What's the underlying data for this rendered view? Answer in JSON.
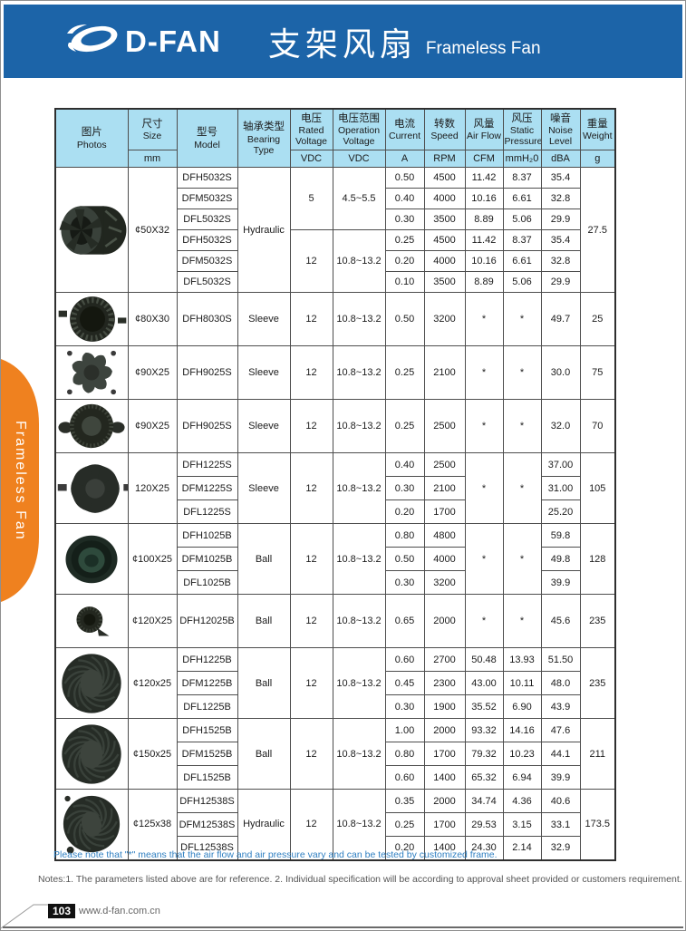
{
  "header": {
    "brand": "D-FAN",
    "title_zh": "支架风扇",
    "title_en": "Frameless Fan"
  },
  "side_tab": {
    "label": "Frameless Fan",
    "color": "#ef811f"
  },
  "colors": {
    "banner_blue": "#1c64a8",
    "table_header_blue": "#abdff2",
    "note_blue": "#2f7fc1"
  },
  "table": {
    "columns": [
      {
        "key": "photos",
        "zh": "图片",
        "en": "Photos",
        "unit": null
      },
      {
        "key": "size",
        "zh": "尺寸",
        "en": "Size",
        "unit": "mm"
      },
      {
        "key": "model",
        "zh": "型号",
        "en": "Model",
        "unit": null
      },
      {
        "key": "bearing",
        "zh": "轴承类型",
        "en": "Bearing Type",
        "unit": null
      },
      {
        "key": "rated_voltage",
        "zh": "电压",
        "en": "Rated Voltage",
        "unit": "VDC"
      },
      {
        "key": "operation_voltage",
        "zh": "电压范围",
        "en": "Operation Voltage",
        "unit": "VDC"
      },
      {
        "key": "current",
        "zh": "电流",
        "en": "Current",
        "unit": "A"
      },
      {
        "key": "speed",
        "zh": "转数",
        "en": "Speed",
        "unit": "RPM"
      },
      {
        "key": "air_flow",
        "zh": "风量",
        "en": "Air Flow",
        "unit": "CFM"
      },
      {
        "key": "static_pressure",
        "zh": "风压",
        "en": "Static Pressure",
        "unit": "mmH₂0"
      },
      {
        "key": "noise",
        "zh": "噪音",
        "en": "Noise Level",
        "unit": "dBA"
      },
      {
        "key": "weight",
        "zh": "重量",
        "en": "Weight",
        "unit": "g"
      }
    ],
    "groups": [
      {
        "photo": "centrifugal",
        "size": "¢50X32",
        "bearing": "Hydraulic",
        "weight": "27.5",
        "subgroups": [
          {
            "voltage": "5",
            "range": "4.5~5.5",
            "rows": [
              {
                "model": "DFH5032S",
                "current": "0.50",
                "speed": "4500",
                "airflow": "11.42",
                "pressure": "8.37",
                "noise": "35.4"
              },
              {
                "model": "DFM5032S",
                "current": "0.40",
                "speed": "4000",
                "airflow": "10.16",
                "pressure": "6.61",
                "noise": "32.8"
              },
              {
                "model": "DFL5032S",
                "current": "0.30",
                "speed": "3500",
                "airflow": "8.89",
                "pressure": "5.06",
                "noise": "29.9"
              }
            ]
          },
          {
            "voltage": "12",
            "range": "10.8~13.2",
            "rows": [
              {
                "model": "DFH5032S",
                "current": "0.25",
                "speed": "4500",
                "airflow": "11.42",
                "pressure": "8.37",
                "noise": "35.4"
              },
              {
                "model": "DFM5032S",
                "current": "0.20",
                "speed": "4000",
                "airflow": "10.16",
                "pressure": "6.61",
                "noise": "32.8"
              },
              {
                "model": "DFL5032S",
                "current": "0.10",
                "speed": "3500",
                "airflow": "8.89",
                "pressure": "5.06",
                "noise": "29.9"
              }
            ]
          }
        ]
      },
      {
        "photo": "blower",
        "size": "¢80X30",
        "bearing": "Sleeve",
        "weight": "25",
        "subgroups": [
          {
            "voltage": "12",
            "range": "10.8~13.2",
            "rows": [
              {
                "model": "DFH8030S",
                "current": "0.50",
                "speed": "3200",
                "airflow": "*",
                "pressure": "*",
                "noise": "49.7"
              }
            ]
          }
        ]
      },
      {
        "photo": "axial",
        "size": "¢90X25",
        "bearing": "Sleeve",
        "weight": "75",
        "subgroups": [
          {
            "voltage": "12",
            "range": "10.8~13.2",
            "rows": [
              {
                "model": "DFH9025S",
                "current": "0.25",
                "speed": "2100",
                "airflow": "*",
                "pressure": "*",
                "noise": "30.0"
              }
            ]
          }
        ]
      },
      {
        "photo": "dome",
        "size": "¢90X25",
        "bearing": "Sleeve",
        "weight": "70",
        "subgroups": [
          {
            "voltage": "12",
            "range": "10.8~13.2",
            "rows": [
              {
                "model": "DFH9025S",
                "current": "0.25",
                "speed": "2500",
                "airflow": "*",
                "pressure": "*",
                "noise": "32.0"
              }
            ]
          }
        ]
      },
      {
        "photo": "axial8",
        "size": "120X25",
        "bearing": "Sleeve",
        "weight": "105",
        "merged": {
          "airflow": "*",
          "pressure": "*"
        },
        "subgroups": [
          {
            "voltage": "12",
            "range": "10.8~13.2",
            "rows": [
              {
                "model": "DFH1225S",
                "current": "0.40",
                "speed": "2500",
                "noise": "37.00"
              },
              {
                "model": "DFM1225S",
                "current": "0.30",
                "speed": "2100",
                "noise": "31.00"
              },
              {
                "model": "DFL1225S",
                "current": "0.20",
                "speed": "1700",
                "noise": "25.20"
              }
            ]
          }
        ]
      },
      {
        "photo": "ring",
        "size": "¢100X25",
        "bearing": "Ball",
        "weight": "128",
        "merged": {
          "airflow": "*",
          "pressure": "*"
        },
        "subgroups": [
          {
            "voltage": "12",
            "range": "10.8~13.2",
            "rows": [
              {
                "model": "DFH1025B",
                "current": "0.80",
                "speed": "4800",
                "noise": "59.8"
              },
              {
                "model": "DFM1025B",
                "current": "0.50",
                "speed": "4000",
                "noise": "49.8"
              },
              {
                "model": "DFL1025B",
                "current": "0.30",
                "speed": "3200",
                "noise": "39.9"
              }
            ]
          }
        ]
      },
      {
        "photo": "smalldome",
        "size": "¢120X25",
        "bearing": "Ball",
        "weight": "235",
        "subgroups": [
          {
            "voltage": "12",
            "range": "10.8~13.2",
            "rows": [
              {
                "model": "DFH12025B",
                "current": "0.65",
                "speed": "2000",
                "airflow": "*",
                "pressure": "*",
                "noise": "45.6"
              }
            ]
          }
        ]
      },
      {
        "photo": "impeller",
        "size": "¢120x25",
        "bearing": "Ball",
        "weight": "235",
        "subgroups": [
          {
            "voltage": "12",
            "range": "10.8~13.2",
            "rows": [
              {
                "model": "DFH1225B",
                "current": "0.60",
                "speed": "2700",
                "airflow": "50.48",
                "pressure": "13.93",
                "noise": "51.50"
              },
              {
                "model": "DFM1225B",
                "current": "0.45",
                "speed": "2300",
                "airflow": "43.00",
                "pressure": "10.11",
                "noise": "48.0"
              },
              {
                "model": "DFL1225B",
                "current": "0.30",
                "speed": "1900",
                "airflow": "35.52",
                "pressure": "6.90",
                "noise": "43.9"
              }
            ]
          }
        ]
      },
      {
        "photo": "impeller",
        "size": "¢150x25",
        "bearing": "Ball",
        "weight": "211",
        "subgroups": [
          {
            "voltage": "12",
            "range": "10.8~13.2",
            "rows": [
              {
                "model": "DFH1525B",
                "current": "1.00",
                "speed": "2000",
                "airflow": "93.32",
                "pressure": "14.16",
                "noise": "47.6"
              },
              {
                "model": "DFM1525B",
                "current": "0.80",
                "speed": "1700",
                "airflow": "79.32",
                "pressure": "10.23",
                "noise": "44.1"
              },
              {
                "model": "DFL1525B",
                "current": "0.60",
                "speed": "1400",
                "airflow": "65.32",
                "pressure": "6.94",
                "noise": "39.9"
              }
            ]
          }
        ]
      },
      {
        "photo": "impellerTilt",
        "size": "¢125x38",
        "bearing": "Hydraulic",
        "weight": "173.5",
        "subgroups": [
          {
            "voltage": "12",
            "range": "10.8~13.2",
            "rows": [
              {
                "model": "DFH12538S",
                "current": "0.35",
                "speed": "2000",
                "airflow": "34.74",
                "pressure": "4.36",
                "noise": "40.6"
              },
              {
                "model": "DFM12538S",
                "current": "0.25",
                "speed": "1700",
                "airflow": "29.53",
                "pressure": "3.15",
                "noise": "33.1"
              },
              {
                "model": "DFL12538S",
                "current": "0.20",
                "speed": "1400",
                "airflow": "24.30",
                "pressure": "2.14",
                "noise": "32.9"
              }
            ]
          }
        ]
      }
    ]
  },
  "footer": {
    "note": "Please note that  \"*\" means that the air flow and air pressure vary and can be tested by customized frame.",
    "notes": "Notes:1. The parameters listed above are for reference.   2. Individual specification will be according to approval sheet provided or customers requirement.",
    "page_number": "103",
    "url": "www.d-fan.com.cn"
  }
}
